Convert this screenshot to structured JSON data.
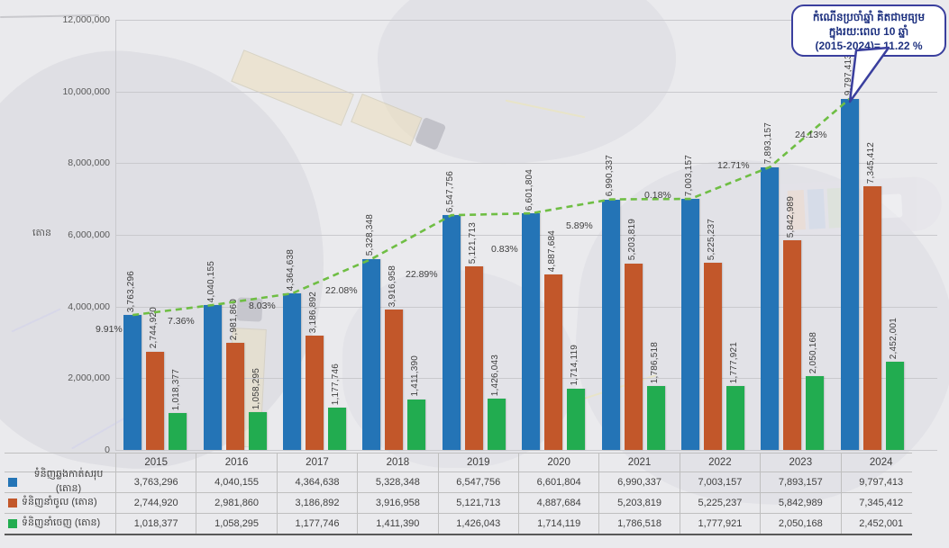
{
  "callout": {
    "line1": "កំណើនប្រចាំឆ្នាំ គិតជាមធ្យម",
    "line2": "ក្នុងរយៈពេល 10 ឆ្នាំ",
    "line3": "(2015-2024)= 11.22 %",
    "border_color": "#3a3f9e",
    "text_color": "#1f3280"
  },
  "axis": {
    "title": "តោន",
    "y_ticks": [
      "0",
      "2,000,000",
      "4,000,000",
      "6,000,000",
      "8,000,000",
      "10,000,000",
      "12,000,000"
    ]
  },
  "chart_data": {
    "type": "bar",
    "title": "",
    "xlabel": "",
    "ylabel": "តោន",
    "ylim": [
      0,
      12000000
    ],
    "grid": true,
    "legend_position": "table-left",
    "categories": [
      "2015",
      "2016",
      "2017",
      "2018",
      "2019",
      "2020",
      "2021",
      "2022",
      "2023",
      "2024"
    ],
    "series": [
      {
        "name": "ទំនិញឆ្លងកាត់សរុប (តោន)",
        "color": "#2474b6",
        "values": [
          3763296,
          4040155,
          4364638,
          5328348,
          6547756,
          6601804,
          6990337,
          7003157,
          7893157,
          9797413
        ]
      },
      {
        "name": "ទំនិញនាំចូល (តោន)",
        "color": "#c2572a",
        "values": [
          2744920,
          2981860,
          3186892,
          3916958,
          5121713,
          4887684,
          5203819,
          5225237,
          5842989,
          7345412
        ]
      },
      {
        "name": "ទំនិញនាំចេញ (តោន)",
        "color": "#22ac50",
        "values": [
          1018377,
          1058295,
          1177746,
          1411390,
          1426043,
          1714119,
          1786518,
          1777921,
          2050168,
          2452001
        ]
      }
    ],
    "trend": {
      "on_series": "ទំនិញឆ្លងកាត់សរុប (តោន)",
      "style": "dashed",
      "color": "#6fbe44",
      "growth_labels": [
        "9.91%",
        "7.36%",
        "8.03%",
        "22.08%",
        "22.89%",
        "0.83%",
        "5.89%",
        "0.18%",
        "12.71%",
        "24.13%"
      ]
    }
  }
}
